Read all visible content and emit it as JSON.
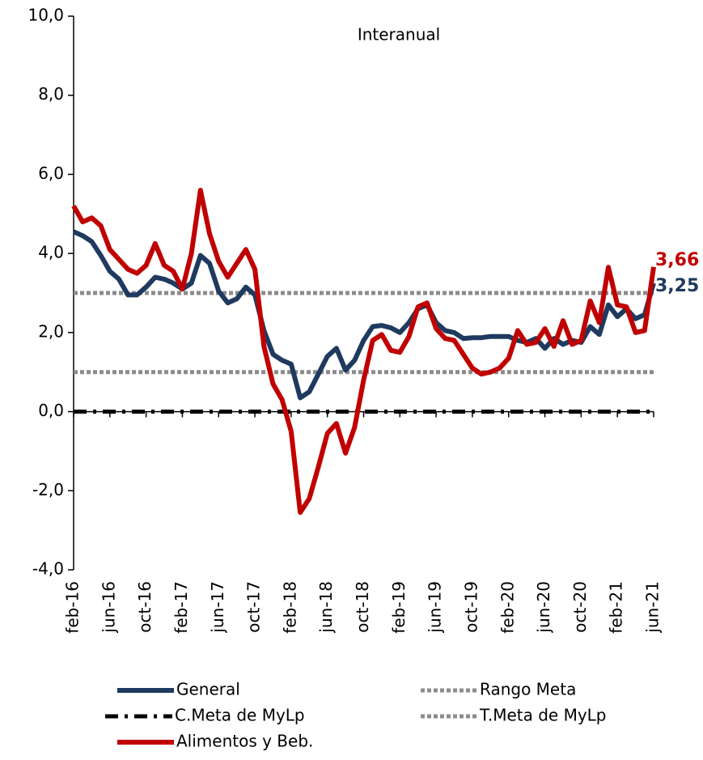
{
  "chart_data": {
    "type": "line",
    "title": "Interanual",
    "categories": [
      "feb-16",
      null,
      null,
      null,
      "jun-16",
      null,
      null,
      null,
      "oct-16",
      null,
      null,
      null,
      "feb-17",
      null,
      null,
      null,
      "jun-17",
      null,
      null,
      null,
      "oct-17",
      null,
      null,
      null,
      "feb-18",
      null,
      null,
      null,
      "jun-18",
      null,
      null,
      null,
      "oct-18",
      null,
      null,
      null,
      "feb-19",
      null,
      null,
      null,
      "jun-19",
      null,
      null,
      null,
      "oct-19",
      null,
      null,
      null,
      "feb-20",
      null,
      null,
      null,
      "jun-20",
      null,
      null,
      null,
      "oct-20",
      null,
      null,
      null,
      "feb-21",
      null,
      null,
      null,
      "jun-21"
    ],
    "series": [
      {
        "name": "General",
        "color": "#1f3a5f",
        "line_style": "solid",
        "values": [
          4.55,
          4.45,
          4.3,
          3.95,
          3.55,
          3.35,
          2.95,
          2.95,
          3.15,
          3.4,
          3.35,
          3.25,
          3.1,
          3.25,
          3.95,
          3.75,
          3.05,
          2.75,
          2.85,
          3.15,
          2.95,
          2.05,
          1.45,
          1.3,
          1.2,
          0.35,
          0.5,
          0.95,
          1.4,
          1.6,
          1.05,
          1.3,
          1.8,
          2.15,
          2.18,
          2.12,
          2.0,
          2.25,
          2.6,
          2.7,
          2.25,
          2.05,
          2.0,
          1.85,
          1.87,
          1.87,
          1.9,
          1.9,
          1.9,
          1.8,
          1.75,
          1.85,
          1.6,
          1.85,
          1.7,
          1.8,
          1.75,
          2.15,
          1.95,
          2.7,
          2.4,
          2.6,
          2.35,
          2.45,
          3.25
        ],
        "value_labels": [
          null,
          null,
          null,
          null,
          null,
          null,
          null,
          null,
          null,
          null,
          null,
          null,
          null,
          null,
          null,
          null,
          null,
          null,
          null,
          null,
          null,
          null,
          null,
          null,
          null,
          null,
          null,
          null,
          null,
          null,
          null,
          null,
          null,
          null,
          null,
          null,
          null,
          null,
          null,
          null,
          null,
          null,
          null,
          null,
          null,
          null,
          null,
          null,
          null,
          null,
          null,
          null,
          null,
          null,
          null,
          null,
          null,
          null,
          null,
          null,
          null,
          null,
          null,
          null,
          "3,25"
        ]
      },
      {
        "name": "Rango Meta",
        "color": "#8c8c8c",
        "line_style": "dotted",
        "values": [
          1,
          1,
          1,
          1,
          1,
          1,
          1,
          1,
          1,
          1,
          1,
          1,
          1,
          1,
          1,
          1,
          1,
          1,
          1,
          1,
          1,
          1,
          1,
          1,
          1,
          1,
          1,
          1,
          1,
          1,
          1,
          1,
          1,
          1,
          1,
          1,
          1,
          1,
          1,
          1,
          1,
          1,
          1,
          1,
          1,
          1,
          1,
          1,
          1,
          1,
          1,
          1,
          1,
          1,
          1,
          1,
          1,
          1,
          1,
          1,
          1,
          1,
          1,
          1,
          1
        ]
      },
      {
        "name": "C.Meta de MyLp",
        "color": "#000000",
        "line_style": "dashdot",
        "values": [
          0,
          0,
          0,
          0,
          0,
          0,
          0,
          0,
          0,
          0,
          0,
          0,
          0,
          0,
          0,
          0,
          0,
          0,
          0,
          0,
          0,
          0,
          0,
          0,
          0,
          0,
          0,
          0,
          0,
          0,
          0,
          0,
          0,
          0,
          0,
          0,
          0,
          0,
          0,
          0,
          0,
          0,
          0,
          0,
          0,
          0,
          0,
          0,
          0,
          0,
          0,
          0,
          0,
          0,
          0,
          0,
          0,
          0,
          0,
          0,
          0,
          0,
          0,
          0,
          0
        ]
      },
      {
        "name": "T.Meta de MyLp",
        "color": "#8c8c8c",
        "line_style": "dotted",
        "values": [
          3,
          3,
          3,
          3,
          3,
          3,
          3,
          3,
          3,
          3,
          3,
          3,
          3,
          3,
          3,
          3,
          3,
          3,
          3,
          3,
          3,
          3,
          3,
          3,
          3,
          3,
          3,
          3,
          3,
          3,
          3,
          3,
          3,
          3,
          3,
          3,
          3,
          3,
          3,
          3,
          3,
          3,
          3,
          3,
          3,
          3,
          3,
          3,
          3,
          3,
          3,
          3,
          3,
          3,
          3,
          3,
          3,
          3,
          3,
          3,
          3,
          3,
          3,
          3,
          3
        ]
      },
      {
        "name": "Alimentos y Beb.",
        "color": "#c00000",
        "line_style": "solid",
        "values": [
          5.2,
          4.8,
          4.9,
          4.7,
          4.1,
          3.85,
          3.6,
          3.5,
          3.7,
          4.25,
          3.7,
          3.55,
          3.1,
          4.0,
          5.6,
          4.5,
          3.8,
          3.4,
          3.75,
          4.1,
          3.6,
          1.65,
          0.7,
          0.3,
          -0.5,
          -2.55,
          -2.2,
          -1.4,
          -0.55,
          -0.3,
          -1.05,
          -0.4,
          0.8,
          1.8,
          1.95,
          1.55,
          1.5,
          1.9,
          2.65,
          2.75,
          2.1,
          1.85,
          1.8,
          1.45,
          1.1,
          0.95,
          1.0,
          1.1,
          1.35,
          2.05,
          1.7,
          1.75,
          2.1,
          1.65,
          2.3,
          1.7,
          1.8,
          2.8,
          2.25,
          3.65,
          2.7,
          2.65,
          2.0,
          2.05,
          3.66
        ],
        "value_labels": [
          null,
          null,
          null,
          null,
          null,
          null,
          null,
          null,
          null,
          null,
          null,
          null,
          null,
          null,
          null,
          null,
          null,
          null,
          null,
          null,
          null,
          null,
          null,
          null,
          null,
          null,
          null,
          null,
          null,
          null,
          null,
          null,
          null,
          null,
          null,
          null,
          null,
          null,
          null,
          null,
          null,
          null,
          null,
          null,
          null,
          null,
          null,
          null,
          null,
          null,
          null,
          null,
          null,
          null,
          null,
          null,
          null,
          null,
          null,
          null,
          null,
          null,
          null,
          null,
          "3,66"
        ]
      }
    ],
    "ylim": [
      -4,
      10
    ],
    "yticks": [
      {
        "value": -4,
        "label": "-4,0"
      },
      {
        "value": -2,
        "label": "-2,0"
      },
      {
        "value": 0,
        "label": "0,0"
      },
      {
        "value": 2,
        "label": "2,0"
      },
      {
        "value": 4,
        "label": "4,0"
      },
      {
        "value": 6,
        "label": "6,0"
      },
      {
        "value": 8,
        "label": "8,0"
      },
      {
        "value": 10,
        "label": "10,0"
      }
    ],
    "grid": false
  }
}
